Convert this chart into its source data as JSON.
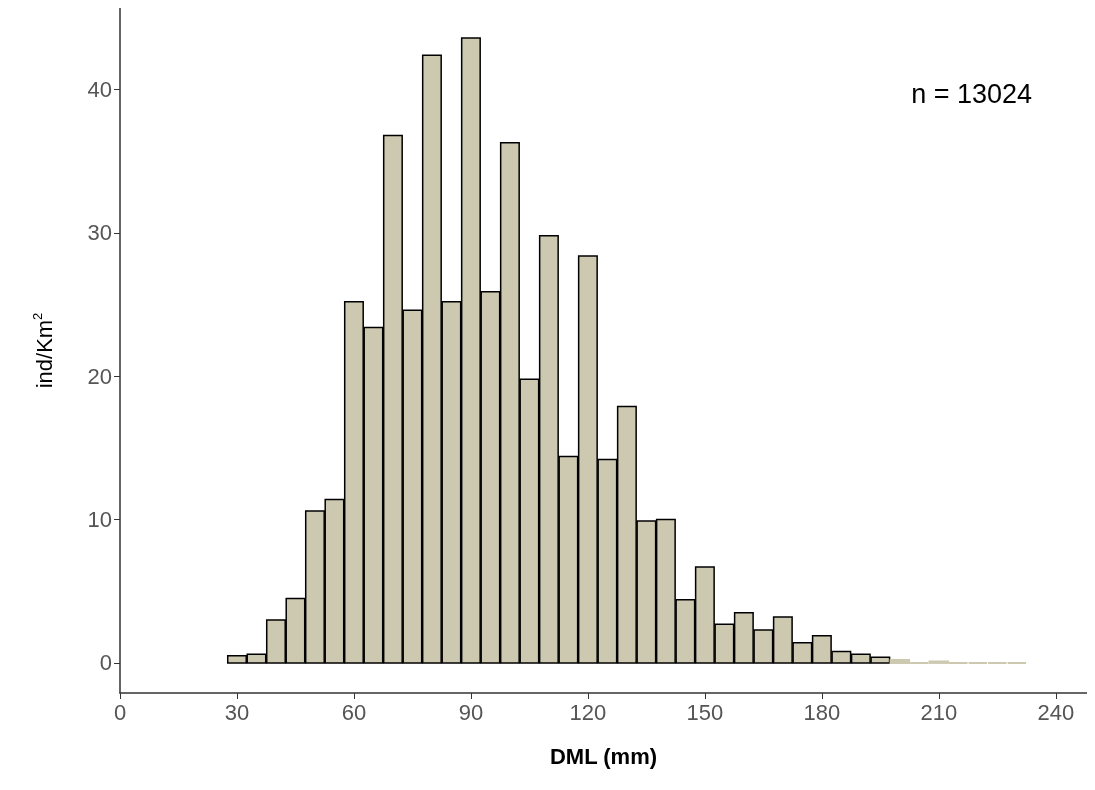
{
  "chart_data": {
    "type": "histogram",
    "xlabel": "DML (mm)",
    "ylabel": "ind/Km$^{2}$",
    "bins": [
      27.5,
      32.5,
      37.5,
      42.5,
      47.5,
      52.5,
      57.5,
      62.5,
      67.5,
      72.5,
      77.5,
      82.5,
      87.5,
      92.5,
      97.5,
      102.5,
      107.5,
      112.5,
      117.5,
      122.5,
      127.5,
      132.5,
      137.5,
      142.5,
      147.5,
      152.5,
      157.5,
      162.5,
      167.5,
      172.5,
      177.5,
      182.5,
      187.5,
      192.5,
      197.5,
      202.5,
      207.5,
      212.5,
      217.5,
      222.5,
      227.5,
      232.5
    ],
    "values": [
      0.5,
      0.6,
      3.0,
      4.5,
      10.6,
      11.4,
      25.2,
      23.4,
      36.8,
      24.6,
      42.4,
      25.2,
      43.6,
      25.9,
      36.3,
      19.8,
      29.8,
      14.4,
      28.4,
      14.2,
      17.9,
      9.9,
      10.0,
      4.4,
      6.7,
      2.7,
      3.5,
      2.3,
      3.2,
      1.4,
      1.9,
      0.8,
      0.6,
      0.4,
      0.2,
      0,
      0.1,
      0,
      0,
      0,
      0
    ],
    "color": "#cdc9b1",
    "xlim": [
      0,
      248
    ],
    "xticks": [
      0,
      30,
      60,
      90,
      120,
      150,
      180,
      210,
      240
    ],
    "ylim": [
      -2.1,
      45.7
    ],
    "yticks": [
      0,
      10,
      20,
      30,
      40
    ],
    "grid": false,
    "annotations": [
      "n = 13024"
    ]
  }
}
